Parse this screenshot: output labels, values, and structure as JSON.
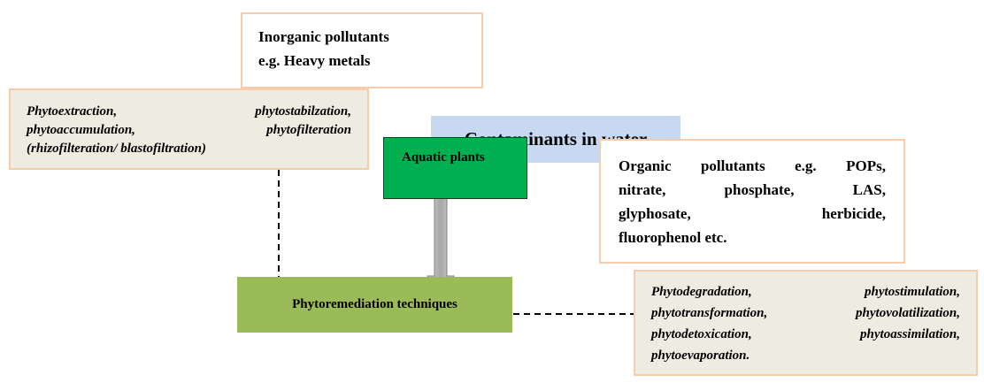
{
  "inorganic": {
    "lines": [
      "Inorganic pollutants",
      "e.g. Heavy metals"
    ]
  },
  "inorganic_techniques": {
    "lines": [
      "Phytoextraction, phytostabilzation,",
      "phytoaccumulation, phytofilteration",
      "(rhizofilteration/ blastofiltration)"
    ]
  },
  "contaminants": {
    "label": "Contaminants in water"
  },
  "aquatic_plants": {
    "label": "Aquatic plants"
  },
  "organic": {
    "lines": [
      "Organic pollutants e.g. POPs,",
      "nitrate, phosphate, LAS,",
      "glyphosate, herbicide,",
      "fluorophenol etc."
    ]
  },
  "phytoremediation": {
    "label": "Phytoremediation techniques"
  },
  "organic_techniques": {
    "lines": [
      "Phytodegradation, phytostimulation,",
      "phytotransformation, phytovolatilization,",
      "phytodetoxication, phytoassimilation,",
      "phytoevaporation."
    ]
  }
}
